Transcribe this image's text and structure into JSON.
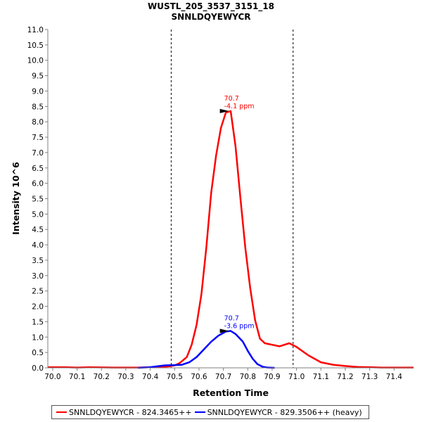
{
  "chart_data": {
    "type": "line",
    "title": "WUSTL_205_3537_3151_18",
    "subtitle": "SNNLDQYEWYCR",
    "xlabel": "Retention Time",
    "ylabel": "Intensity 10^6",
    "xlim": [
      69.98,
      71.48
    ],
    "ylim": [
      0,
      11
    ],
    "x_ticks": [
      "70.0",
      "70.1",
      "70.2",
      "70.3",
      "70.4",
      "70.5",
      "70.6",
      "70.7",
      "70.8",
      "70.9",
      "71.0",
      "71.1",
      "71.2",
      "71.3",
      "71.4"
    ],
    "y_ticks": [
      "0.0",
      "0.5",
      "1.0",
      "1.5",
      "2.0",
      "2.5",
      "3.0",
      "3.5",
      "4.0",
      "4.5",
      "5.0",
      "5.5",
      "6.0",
      "6.5",
      "7.0",
      "7.5",
      "8.0",
      "8.5",
      "9.0",
      "9.5",
      "10.0",
      "10.5",
      "11.0"
    ],
    "boundaries": [
      70.486,
      70.986
    ],
    "grid": false,
    "legend_position": "bottom",
    "series": [
      {
        "name": "SNNLDQYEWYCR - 824.3465++",
        "color": "#ff0000",
        "x": [
          69.98,
          70.05,
          70.1,
          70.15,
          70.25,
          70.3,
          70.35,
          70.4,
          70.45,
          70.48,
          70.5,
          70.52,
          70.55,
          70.57,
          70.59,
          70.61,
          70.63,
          70.65,
          70.67,
          70.69,
          70.71,
          70.73,
          70.75,
          70.77,
          70.79,
          70.81,
          70.83,
          70.85,
          70.87,
          70.9,
          70.93,
          70.97,
          71.0,
          71.05,
          71.1,
          71.15,
          71.2,
          71.25,
          71.3,
          71.35,
          71.4,
          71.48
        ],
        "values": [
          0.02,
          0.02,
          0.01,
          0.02,
          0.01,
          0.01,
          0.01,
          0.02,
          0.03,
          0.05,
          0.08,
          0.15,
          0.35,
          0.75,
          1.4,
          2.4,
          3.9,
          5.7,
          6.9,
          7.8,
          8.3,
          8.35,
          7.2,
          5.5,
          3.9,
          2.6,
          1.55,
          0.95,
          0.8,
          0.75,
          0.7,
          0.8,
          0.68,
          0.4,
          0.18,
          0.1,
          0.06,
          0.03,
          0.02,
          0.01,
          0.01,
          0.01
        ]
      },
      {
        "name": "SNNLDQYEWYCR - 829.3506++ (heavy)",
        "color": "#0000ff",
        "x": [
          70.35,
          70.4,
          70.43,
          70.46,
          70.5,
          70.53,
          70.56,
          70.59,
          70.62,
          70.65,
          70.68,
          70.71,
          70.73,
          70.75,
          70.78,
          70.8,
          70.82,
          70.84,
          70.86,
          70.88,
          70.91
        ],
        "values": [
          0.0,
          0.02,
          0.05,
          0.08,
          0.09,
          0.1,
          0.18,
          0.35,
          0.6,
          0.85,
          1.05,
          1.18,
          1.2,
          1.1,
          0.85,
          0.55,
          0.3,
          0.12,
          0.04,
          0.01,
          0.0
        ]
      }
    ],
    "annotations": [
      {
        "series": 0,
        "x": 70.726,
        "y": 8.35,
        "line1": "70.7",
        "line2": "-4.1 ppm"
      },
      {
        "series": 1,
        "x": 70.726,
        "y": 1.2,
        "line1": "70.7",
        "line2": "-3.6 ppm"
      }
    ]
  }
}
